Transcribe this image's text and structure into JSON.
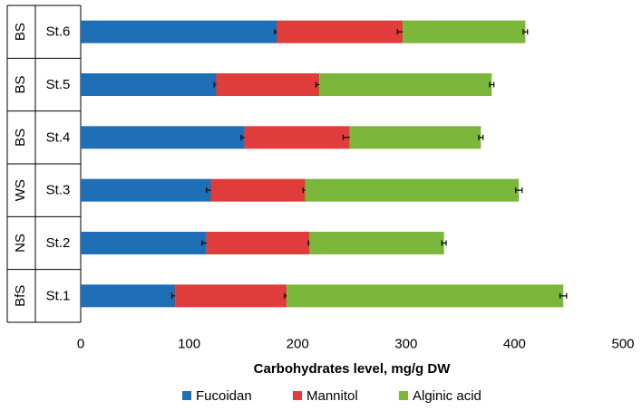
{
  "chart_data": {
    "type": "bar",
    "orientation": "horizontal",
    "stacked": true,
    "categories": [
      "St.6",
      "St.5",
      "St.4",
      "St.3",
      "St.2",
      "St.1"
    ],
    "groups": [
      "BS",
      "BS",
      "BS",
      "WS",
      "NS",
      "BfS"
    ],
    "series": [
      {
        "name": "Fucoidan",
        "color": "#1f6fb7",
        "values": [
          181,
          125,
          151,
          120,
          116,
          87
        ],
        "errors": [
          2,
          2,
          3,
          4,
          4,
          3
        ]
      },
      {
        "name": "Mannitol",
        "color": "#e03c3c",
        "values": [
          116,
          95,
          97,
          87,
          95,
          103
        ],
        "errors": [
          5,
          3,
          6,
          2,
          1,
          2
        ]
      },
      {
        "name": "Alginic acid",
        "color": "#7ab73a",
        "values": [
          113,
          159,
          121,
          197,
          124,
          255
        ],
        "errors": [
          2,
          2,
          2,
          3,
          2,
          3
        ]
      }
    ],
    "xlabel": "Carbohydrates level, mg/g DW",
    "ylabel": "",
    "xlim": [
      0,
      500
    ],
    "xticks": [
      "0",
      "100",
      "200",
      "300",
      "400",
      "500"
    ],
    "grid": false,
    "legend_position": "bottom"
  }
}
